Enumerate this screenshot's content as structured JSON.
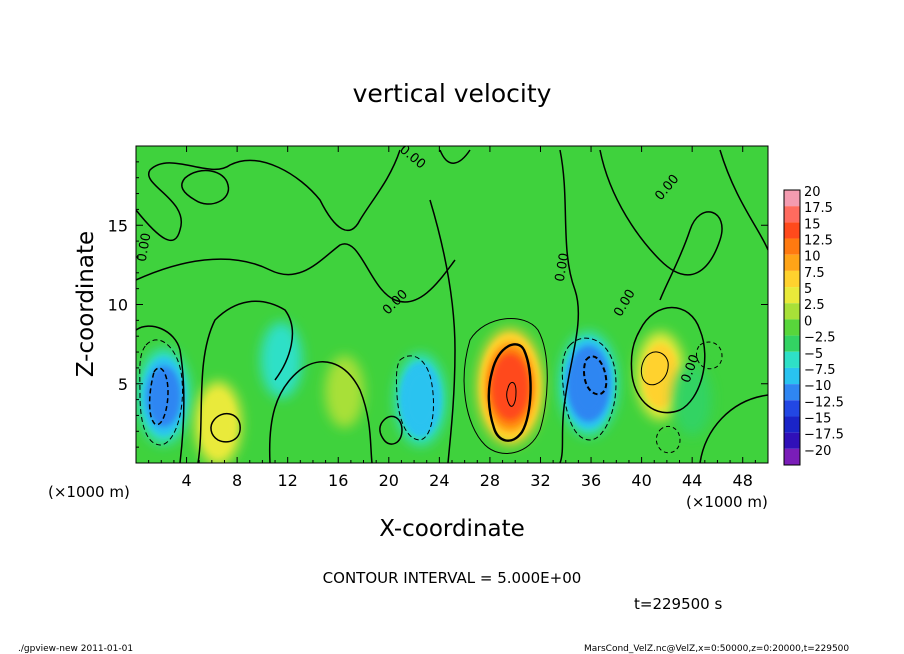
{
  "chart_data": {
    "type": "heatmap",
    "title": "vertical velocity",
    "xlabel": "X-coordinate",
    "ylabel": "Z-coordinate",
    "x_unit_left": "(×1000 m)",
    "x_unit_right": "(×1000 m)",
    "xlim": [
      0,
      50
    ],
    "ylim": [
      0,
      20
    ],
    "xticks": [
      {
        "value": 4,
        "label": "4"
      },
      {
        "value": 8,
        "label": "8"
      },
      {
        "value": 12,
        "label": "12"
      },
      {
        "value": 16,
        "label": "16"
      },
      {
        "value": 20,
        "label": "20"
      },
      {
        "value": 24,
        "label": "24"
      },
      {
        "value": 28,
        "label": "28"
      },
      {
        "value": 32,
        "label": "32"
      },
      {
        "value": 36,
        "label": "36"
      },
      {
        "value": 40,
        "label": "40"
      },
      {
        "value": 44,
        "label": "44"
      },
      {
        "value": 48,
        "label": "48"
      }
    ],
    "yticks": [
      {
        "value": 5,
        "label": "5"
      },
      {
        "value": 10,
        "label": "10"
      },
      {
        "value": 15,
        "label": "15"
      }
    ],
    "colorbar": {
      "levels": [
        "20",
        "17.5",
        "15",
        "12.5",
        "10",
        "7.5",
        "5",
        "2.5",
        "0",
        "−2.5",
        "−5",
        "−7.5",
        "−10",
        "−12.5",
        "−15",
        "−17.5",
        "−20"
      ],
      "colors": [
        "#f49bb0",
        "#ff6b5f",
        "#ff4a1c",
        "#ff7a10",
        "#ffa417",
        "#ffd22e",
        "#e9ea3a",
        "#a8e038",
        "#58d63b",
        "#33d363",
        "#2ee0c7",
        "#29c3f0",
        "#2f86f2",
        "#2247e4",
        "#1a24c8",
        "#3010b8",
        "#7a1db8"
      ]
    },
    "features": [
      {
        "x": 2.2,
        "z": 4.2,
        "value": -9,
        "kind": "downdraft"
      },
      {
        "x": 6.5,
        "z": 2.5,
        "value": 6,
        "kind": "updraft"
      },
      {
        "x": 11.5,
        "z": 6.5,
        "value": -4,
        "kind": "downdraft"
      },
      {
        "x": 16.5,
        "z": 4.5,
        "value": 3,
        "kind": "updraft"
      },
      {
        "x": 22.5,
        "z": 4.0,
        "value": -8,
        "kind": "downdraft"
      },
      {
        "x": 29.6,
        "z": 4.8,
        "value": 14,
        "kind": "updraft"
      },
      {
        "x": 35.8,
        "z": 5.0,
        "value": -11,
        "kind": "downdraft"
      },
      {
        "x": 41.5,
        "z": 5.5,
        "value": 7,
        "kind": "updraft"
      },
      {
        "x": 44.0,
        "z": 4.0,
        "value": -3,
        "kind": "downdraft"
      }
    ],
    "contour_labels": [
      "0.00",
      "0.00",
      "0.00",
      "0.00",
      "0.00",
      "0.00",
      "0.00"
    ],
    "grid": false
  },
  "annotations": {
    "contour_interval": "CONTOUR INTERVAL = 5.000E+00",
    "time": "t=229500 s",
    "footer_left": "./gpview-new  2011-01-01",
    "footer_right": "MarsCond_VelZ.nc@VelZ,x=0:50000,z=0:20000,t=229500"
  }
}
